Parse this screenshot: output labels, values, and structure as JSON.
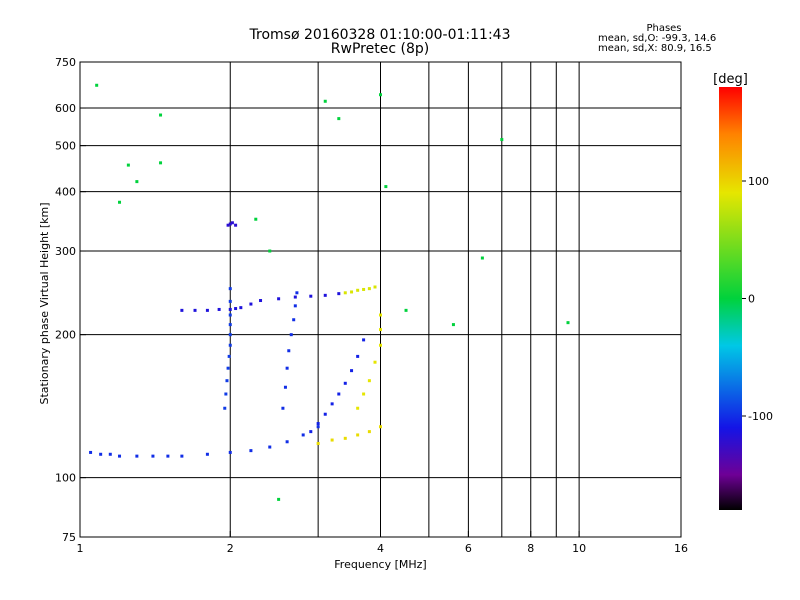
{
  "chart_data": {
    "type": "scatter",
    "title": "Tromsø 20160328 01:10:00-01:11:43",
    "subtitle": "RwPretec (8p)",
    "xlabel": "Frequency [MHz]",
    "ylabel": "Stationary phase Virtual Height [km]",
    "x_scale": "log",
    "y_scale": "log",
    "xlim": [
      1,
      16
    ],
    "ylim": [
      75,
      750
    ],
    "x_ticks": [
      1,
      2,
      4,
      6,
      8,
      10,
      16
    ],
    "x_tick_labels": [
      "1",
      "2",
      "4",
      "6",
      "8",
      "10",
      "16"
    ],
    "x_grid": [
      2,
      3,
      4,
      5,
      6,
      7,
      8,
      9,
      10
    ],
    "y_ticks": [
      75,
      100,
      200,
      300,
      400,
      500,
      600,
      750
    ],
    "y_tick_labels": [
      "75",
      "100",
      "200",
      "300",
      "400",
      "500",
      "600",
      "750"
    ],
    "y_grid": [
      100,
      200,
      300,
      400,
      500,
      600
    ],
    "grid": true,
    "stats": {
      "title": "Phases",
      "line1": "mean, sd,O: -99.3, 14.6",
      "line2": "mean, sd,X:  80.9, 16.5"
    },
    "colorbar": {
      "label": "[deg]",
      "range": [
        -180,
        180
      ],
      "ticks": [
        100,
        0,
        -100
      ],
      "tick_labels": [
        "100",
        "0",
        "-100"
      ]
    },
    "traces": [
      {
        "name": "o-trace-base",
        "phase": -100,
        "x": [
          1.05,
          1.1,
          1.15,
          1.2,
          1.3,
          1.4,
          1.5,
          1.6,
          1.8,
          2.0,
          2.2,
          2.4,
          2.6,
          2.8,
          3.0
        ],
        "y": [
          113,
          112,
          112,
          111,
          111,
          111,
          111,
          111,
          112,
          113,
          114,
          116,
          119,
          123,
          128
        ]
      },
      {
        "name": "o-trace-cusp",
        "phase": -105,
        "x": [
          2.9,
          3.0,
          3.1,
          3.2,
          3.3,
          3.4,
          3.5,
          3.6,
          3.7
        ],
        "y": [
          125,
          130,
          136,
          143,
          150,
          158,
          168,
          180,
          195
        ]
      },
      {
        "name": "o-f2-spread",
        "phase": -115,
        "x": [
          1.6,
          1.7,
          1.8,
          1.9,
          2.0,
          2.05,
          2.1,
          2.2,
          2.3,
          2.5,
          2.7,
          2.9,
          3.1,
          3.3
        ],
        "y": [
          225,
          225,
          225,
          226,
          226,
          227,
          228,
          232,
          236,
          238,
          240,
          241,
          242,
          244
        ]
      },
      {
        "name": "o-vertical-1",
        "phase": -95,
        "x": [
          1.95,
          1.96,
          1.97,
          1.98,
          1.99,
          2.0,
          2.0,
          2.0,
          2.0,
          2.0,
          2.0
        ],
        "y": [
          140,
          150,
          160,
          170,
          180,
          190,
          200,
          210,
          220,
          235,
          250
        ]
      },
      {
        "name": "o-vertical-2",
        "phase": -100,
        "x": [
          2.55,
          2.58,
          2.6,
          2.62,
          2.65,
          2.68,
          2.7,
          2.72
        ],
        "y": [
          140,
          155,
          170,
          185,
          200,
          215,
          230,
          245
        ]
      },
      {
        "name": "o-high-cluster",
        "phase": -120,
        "x": [
          1.98,
          2.0,
          2.02,
          2.05
        ],
        "y": [
          340,
          342,
          344,
          340
        ]
      },
      {
        "name": "x-trace-base",
        "phase": 95,
        "x": [
          3.0,
          3.2,
          3.4,
          3.6,
          3.8,
          4.0
        ],
        "y": [
          118,
          120,
          121,
          123,
          125,
          128
        ]
      },
      {
        "name": "x-trace-cusp",
        "phase": 90,
        "x": [
          3.6,
          3.7,
          3.8,
          3.9,
          4.0,
          4.0,
          4.0
        ],
        "y": [
          140,
          150,
          160,
          175,
          190,
          205,
          220
        ]
      },
      {
        "name": "x-f2-spread",
        "phase": 85,
        "x": [
          3.4,
          3.5,
          3.6,
          3.7,
          3.8,
          3.9
        ],
        "y": [
          245,
          246,
          248,
          249,
          250,
          252
        ]
      },
      {
        "name": "scattered-echoes",
        "phase": 0,
        "x": [
          1.08,
          1.25,
          1.3,
          1.45,
          1.45,
          2.25,
          2.4,
          3.1,
          3.3,
          4.0,
          4.1,
          4.5,
          5.6,
          6.4,
          7.0,
          9.5,
          1.2,
          2.5
        ],
        "y": [
          670,
          455,
          420,
          580,
          460,
          350,
          300,
          620,
          570,
          640,
          410,
          225,
          210,
          290,
          515,
          212,
          380,
          90
        ]
      }
    ]
  }
}
